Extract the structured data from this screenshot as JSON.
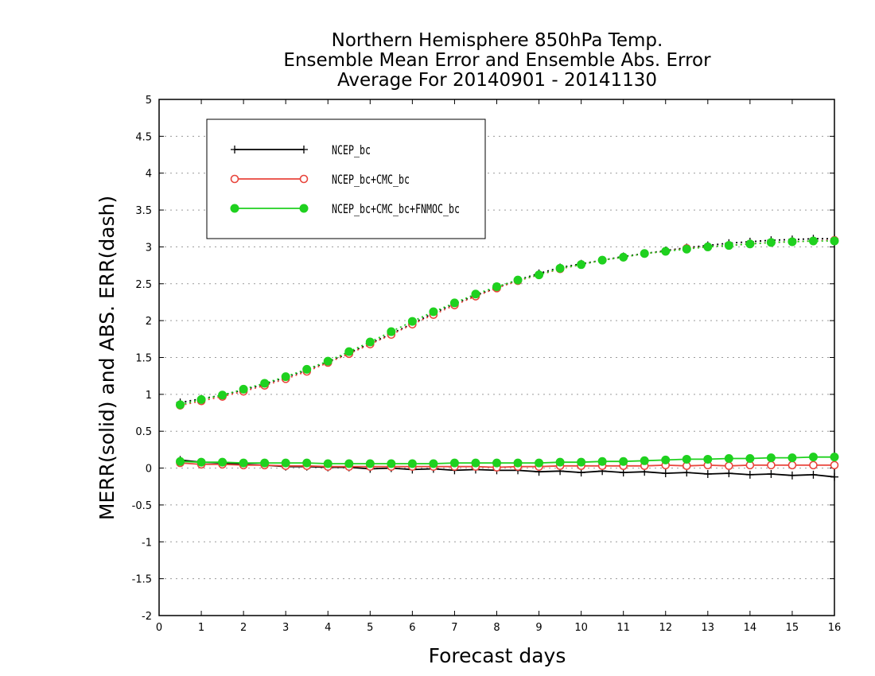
{
  "chart_data": {
    "type": "line",
    "title_lines": [
      "Northern Hemisphere 850hPa Temp.",
      "Ensemble Mean Error and Ensemble Abs. Error",
      "Average For 20140901 - 20141130"
    ],
    "xlabel": "Forecast days",
    "ylabel": "MERR(solid) and ABS. ERR(dash)",
    "xlim": [
      0,
      16
    ],
    "ylim": [
      -2,
      5
    ],
    "x_ticks": [
      "0",
      "1",
      "2",
      "3",
      "4",
      "5",
      "6",
      "7",
      "8",
      "9",
      "10",
      "11",
      "12",
      "13",
      "14",
      "15",
      "16"
    ],
    "y_ticks": [
      "-2",
      "-1.5",
      "-1",
      "-0.5",
      "0",
      "0.5",
      "1",
      "1.5",
      "2",
      "2.5",
      "3",
      "3.5",
      "4",
      "4.5",
      "5"
    ],
    "grid": true,
    "legend_position": "top-left",
    "x": [
      0.5,
      1,
      1.5,
      2,
      2.5,
      3,
      3.5,
      4,
      4.5,
      5,
      5.5,
      6,
      6.5,
      7,
      7.5,
      8,
      8.5,
      9,
      9.5,
      10,
      10.5,
      11,
      11.5,
      12,
      12.5,
      13,
      13.5,
      14,
      14.5,
      15,
      15.5,
      16
    ],
    "series": [
      {
        "name": "NCEP_bc",
        "color": "#000000",
        "marker": "plus",
        "merr": [
          0.11,
          0.08,
          0.07,
          0.05,
          0.04,
          0.02,
          0.02,
          0.01,
          0.01,
          -0.01,
          0.0,
          -0.02,
          -0.01,
          -0.03,
          -0.02,
          -0.03,
          -0.03,
          -0.05,
          -0.04,
          -0.06,
          -0.04,
          -0.06,
          -0.05,
          -0.07,
          -0.06,
          -0.08,
          -0.07,
          -0.09,
          -0.08,
          -0.1,
          -0.09,
          -0.12
        ],
        "abs_err": [
          0.89,
          0.94,
          0.99,
          1.06,
          1.14,
          1.23,
          1.33,
          1.44,
          1.56,
          1.69,
          1.82,
          1.96,
          2.1,
          2.23,
          2.34,
          2.45,
          2.55,
          2.64,
          2.72,
          2.77,
          2.82,
          2.87,
          2.91,
          2.95,
          2.99,
          3.02,
          3.05,
          3.07,
          3.09,
          3.1,
          3.11,
          3.11
        ]
      },
      {
        "name": "NCEP_bc+CMC_bc",
        "color": "#e8453c",
        "marker": "open-circle",
        "merr": [
          0.07,
          0.05,
          0.05,
          0.04,
          0.04,
          0.03,
          0.03,
          0.02,
          0.02,
          0.02,
          0.02,
          0.02,
          0.02,
          0.02,
          0.02,
          0.01,
          0.02,
          0.02,
          0.03,
          0.03,
          0.03,
          0.03,
          0.03,
          0.04,
          0.03,
          0.04,
          0.03,
          0.04,
          0.04,
          0.04,
          0.04,
          0.04
        ],
        "abs_err": [
          0.85,
          0.91,
          0.97,
          1.04,
          1.12,
          1.21,
          1.31,
          1.43,
          1.55,
          1.68,
          1.81,
          1.95,
          2.08,
          2.21,
          2.33,
          2.44,
          2.54,
          2.62,
          2.7,
          2.76,
          2.82,
          2.86,
          2.91,
          2.94,
          2.98,
          3.0,
          3.02,
          3.04,
          3.06,
          3.07,
          3.08,
          3.09
        ]
      },
      {
        "name": "NCEP_bc+CMC_bc+FNMOC_bc",
        "color": "#1fd11f",
        "marker": "filled-circle",
        "merr": [
          0.09,
          0.08,
          0.08,
          0.07,
          0.07,
          0.07,
          0.07,
          0.06,
          0.06,
          0.06,
          0.06,
          0.06,
          0.06,
          0.07,
          0.07,
          0.07,
          0.07,
          0.07,
          0.08,
          0.08,
          0.09,
          0.09,
          0.1,
          0.11,
          0.12,
          0.12,
          0.13,
          0.13,
          0.14,
          0.14,
          0.15,
          0.15
        ],
        "abs_err": [
          0.86,
          0.93,
          0.99,
          1.07,
          1.15,
          1.24,
          1.34,
          1.45,
          1.58,
          1.71,
          1.85,
          1.99,
          2.12,
          2.24,
          2.36,
          2.46,
          2.55,
          2.62,
          2.71,
          2.76,
          2.82,
          2.86,
          2.91,
          2.94,
          2.97,
          3.0,
          3.02,
          3.04,
          3.06,
          3.07,
          3.08,
          3.08
        ]
      }
    ]
  }
}
